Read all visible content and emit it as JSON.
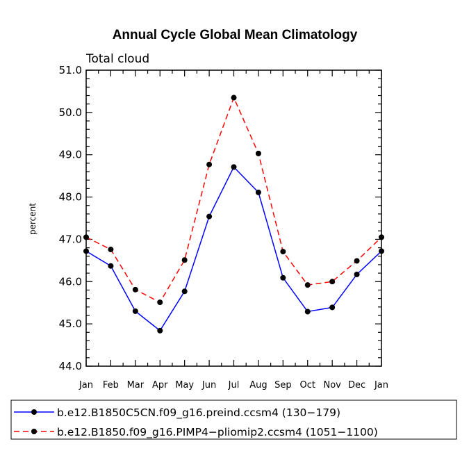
{
  "chart_data": {
    "type": "line",
    "title": "Annual Cycle Global Mean Climatology",
    "subtitle": "Total cloud",
    "xlabel": "",
    "ylabel": "percent",
    "categories": [
      "Jan",
      "Feb",
      "Mar",
      "Apr",
      "May",
      "Jun",
      "Jul",
      "Aug",
      "Sep",
      "Oct",
      "Nov",
      "Dec",
      "Jan"
    ],
    "ylim": [
      44.0,
      51.0
    ],
    "yticks": [
      "44.0",
      "45.0",
      "46.0",
      "47.0",
      "48.0",
      "49.0",
      "50.0",
      "51.0"
    ],
    "series": [
      {
        "name": "b.e12.B1850C5CN.f09_g16.preind.ccsm4 (130−179)",
        "color": "#0000ff",
        "dash": "solid",
        "values": [
          46.72,
          46.37,
          45.3,
          44.84,
          45.77,
          47.54,
          48.71,
          48.11,
          46.09,
          45.29,
          45.39,
          46.17,
          46.72
        ]
      },
      {
        "name": "b.e12.B1850.f09_g16.PIMP4−pliomip2.ccsm4 (1051−1100)",
        "color": "#ff0000",
        "dash": "dashed",
        "values": [
          47.05,
          46.76,
          45.81,
          45.51,
          46.51,
          48.77,
          50.35,
          49.03,
          46.71,
          45.92,
          46.0,
          46.49,
          47.05
        ]
      }
    ],
    "legend": "bottom"
  }
}
